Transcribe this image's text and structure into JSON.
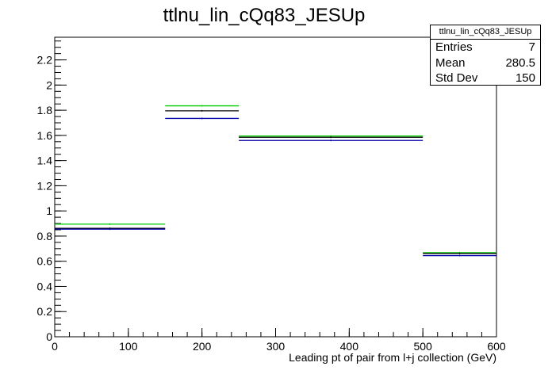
{
  "chart_data": {
    "type": "histogram",
    "title": "ttlnu_lin_cQq83_JESUp",
    "xlabel": "Leading pt of pair from l+j collection (GeV)",
    "ylabel": "",
    "xlim": [
      0,
      600
    ],
    "ylim": [
      0,
      2.38
    ],
    "x_ticks": [
      0,
      100,
      200,
      300,
      400,
      500,
      600
    ],
    "y_ticks": [
      0,
      0.2,
      0.4,
      0.6,
      0.8,
      1,
      1.2,
      1.4,
      1.6,
      1.8,
      2,
      2.2
    ],
    "bins": [
      {
        "low": 0,
        "high": 150
      },
      {
        "low": 150,
        "high": 250
      },
      {
        "low": 250,
        "high": 500
      },
      {
        "low": 500,
        "high": 600
      }
    ],
    "series": [
      {
        "color": "#00cc00",
        "values": [
          0.895,
          1.835,
          1.595,
          0.668
        ]
      },
      {
        "color": "#000000",
        "values": [
          0.862,
          1.795,
          1.585,
          0.662
        ]
      },
      {
        "color": "#0000aa",
        "values": [
          0.855,
          1.735,
          1.56,
          0.645
        ]
      }
    ],
    "grid": false
  },
  "stats": {
    "name": "ttlnu_lin_cQq83_JESUp",
    "entries_label": "Entries",
    "entries_value": "7",
    "mean_label": "Mean",
    "mean_value": "280.5",
    "stddev_label": "Std Dev",
    "stddev_value": "150"
  }
}
